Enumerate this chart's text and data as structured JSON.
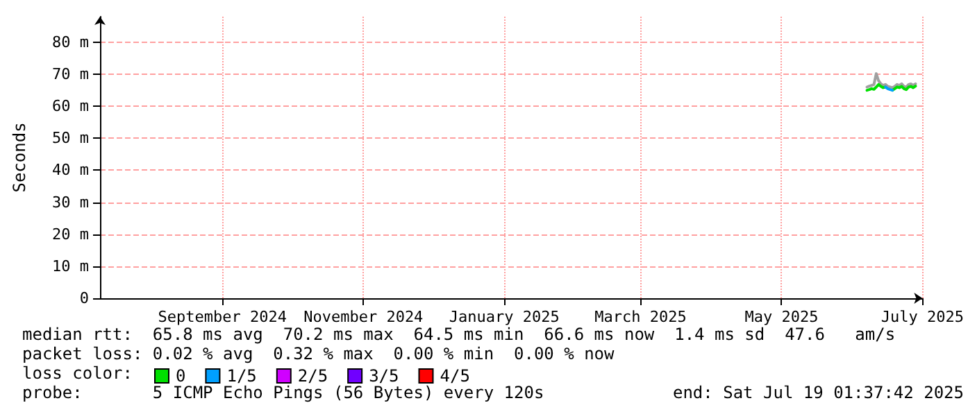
{
  "chart_data": {
    "type": "line",
    "ylabel": "Seconds",
    "legend_title": "loss color:",
    "x": [
      "2025-06-07",
      "2025-06-08",
      "2025-06-09",
      "2025-06-10",
      "2025-06-11",
      "2025-06-12",
      "2025-06-13",
      "2025-06-14",
      "2025-06-15",
      "2025-06-16",
      "2025-06-17",
      "2025-06-18",
      "2025-06-19",
      "2025-06-20",
      "2025-06-21",
      "2025-06-22",
      "2025-06-23",
      "2025-06-24",
      "2025-06-25",
      "2025-06-26",
      "2025-06-27",
      "2025-06-28"
    ],
    "series": [
      {
        "color": "#a0a0a0",
        "values": [
          66.0,
          66.3,
          66.5,
          66.8,
          70.2,
          68.0,
          67.0,
          66.5,
          66.8,
          66.2,
          66.0,
          65.8,
          66.2,
          66.8,
          66.5,
          67.0,
          66.2,
          66.0,
          66.8,
          67.0,
          66.5,
          67.0
        ]
      },
      {
        "name": "0",
        "color": "#00e000",
        "values": [
          65.0,
          65.2,
          65.5,
          65.3,
          66.0,
          66.8,
          66.2,
          65.8,
          66.0,
          null,
          null,
          65.0,
          65.5,
          66.0,
          65.8,
          66.2,
          65.5,
          65.2,
          66.0,
          66.2,
          65.8,
          66.3
        ]
      },
      {
        "name": "1/5",
        "color": "#00a0ff",
        "values": [
          null,
          null,
          null,
          null,
          null,
          null,
          null,
          null,
          66.0,
          65.5,
          65.2,
          65.0,
          null,
          null,
          null,
          null,
          null,
          null,
          null,
          null,
          null,
          null
        ]
      },
      {
        "name": "2/5",
        "color": "#d000ff",
        "values": [
          null,
          null,
          null,
          null,
          null,
          null,
          null,
          null,
          null,
          null,
          null,
          null,
          null,
          null,
          null,
          null,
          null,
          null,
          null,
          null,
          null,
          null
        ]
      },
      {
        "name": "3/5",
        "color": "#7000ff",
        "values": [
          null,
          null,
          null,
          null,
          null,
          null,
          null,
          null,
          null,
          null,
          null,
          null,
          null,
          null,
          null,
          null,
          null,
          null,
          null,
          null,
          null,
          null
        ]
      },
      {
        "name": "4/5",
        "color": "#ff0000",
        "values": [
          null,
          null,
          null,
          null,
          null,
          null,
          null,
          null,
          null,
          null,
          null,
          null,
          null,
          null,
          null,
          null,
          null,
          null,
          null,
          null,
          null,
          null
        ]
      }
    ],
    "xlim": [
      "2024-07-10",
      "2025-07-01"
    ],
    "xticks": [
      {
        "value": "2024-09-01",
        "label": "September 2024"
      },
      {
        "value": "2024-11-01",
        "label": "November 2024"
      },
      {
        "value": "2025-01-01",
        "label": "January 2025"
      },
      {
        "value": "2025-03-01",
        "label": "March 2025"
      },
      {
        "value": "2025-05-01",
        "label": "May 2025"
      },
      {
        "value": "2025-07-01",
        "label": "July 2025"
      }
    ],
    "ylim": [
      0,
      88
    ],
    "yticks": [
      0,
      {
        "value": 10,
        "label": "10 m"
      },
      {
        "value": 20,
        "label": "20 m"
      },
      {
        "value": 30,
        "label": "30 m"
      },
      {
        "value": 40,
        "label": "40 m"
      },
      {
        "value": 50,
        "label": "50 m"
      },
      {
        "value": 60,
        "label": "60 m"
      },
      {
        "value": 70,
        "label": "70 m"
      },
      {
        "value": 80,
        "label": "80 m"
      }
    ],
    "grid": true,
    "legend": "bottom",
    "marker": "none",
    "line_style": "solid",
    "annotations": [
      "median rtt:  65.8 ms avg  70.2 ms max  64.5 ms min  66.6 ms now  1.4 ms sd  47.6   am/s",
      "packet loss: 0.02 % avg  0.32 % max  0.00 % min  0.00 % now",
      "probe:       5 ICMP Echo Pings (56 Bytes) every 120s",
      "end: Sat Jul 19 01:37:42 2025"
    ]
  }
}
